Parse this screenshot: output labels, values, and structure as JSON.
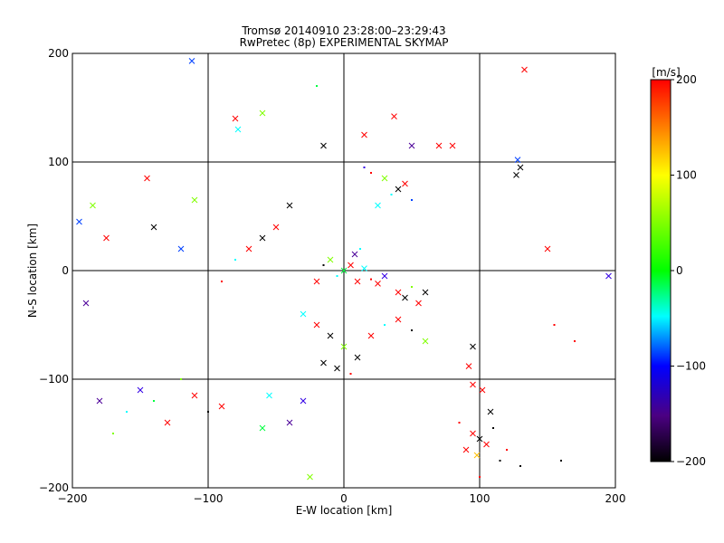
{
  "chart_data": {
    "type": "scatter",
    "title": "Tromsø 20140910 23:28:00–23:29:43",
    "subtitle": "RwPretec (8p) EXPERIMENTAL SKYMAP",
    "xlabel": "E-W location [km]",
    "ylabel": "N-S location [km]",
    "xlim": [
      -200,
      200
    ],
    "ylim": [
      -200,
      200
    ],
    "xticks": [
      -200,
      -100,
      0,
      100,
      200
    ],
    "yticks": [
      -200,
      -100,
      0,
      100,
      200
    ],
    "x_tick_labels": [
      "−200",
      "−100",
      "0",
      "100",
      "200"
    ],
    "y_tick_labels": [
      "−200",
      "−100",
      "0",
      "100",
      "200"
    ],
    "grid": true,
    "marker_types": [
      "cross",
      "dot"
    ],
    "colorbar": {
      "label": "[m/s]",
      "range": [
        -200,
        200
      ],
      "ticks": [
        -200,
        -100,
        0,
        100,
        200
      ],
      "tick_labels": [
        "−200",
        "−100",
        "0",
        "100",
        "200"
      ],
      "colors": [
        "#000000",
        "#6600cc",
        "#0000ff",
        "#00ffff",
        "#00ff00",
        "#ffff00",
        "#ff0000"
      ]
    },
    "points": [
      {
        "x": 0,
        "y": 0,
        "v": 50,
        "m": "x"
      },
      {
        "x": 5,
        "y": 5,
        "v": 200,
        "m": "x"
      },
      {
        "x": -5,
        "y": -5,
        "v": 0,
        "m": "."
      },
      {
        "x": 10,
        "y": -10,
        "v": 200,
        "m": "x"
      },
      {
        "x": 15,
        "y": 2,
        "v": 0,
        "m": "x"
      },
      {
        "x": 20,
        "y": -8,
        "v": 200,
        "m": "."
      },
      {
        "x": 25,
        "y": -12,
        "v": 200,
        "m": "x"
      },
      {
        "x": 30,
        "y": -5,
        "v": -100,
        "m": "x"
      },
      {
        "x": -10,
        "y": 10,
        "v": 100,
        "m": "x"
      },
      {
        "x": -15,
        "y": 5,
        "v": -200,
        "m": "."
      },
      {
        "x": -20,
        "y": -10,
        "v": 200,
        "m": "x"
      },
      {
        "x": 8,
        "y": 15,
        "v": -150,
        "m": "x"
      },
      {
        "x": 12,
        "y": 20,
        "v": 0,
        "m": "."
      },
      {
        "x": 40,
        "y": -20,
        "v": 200,
        "m": "x"
      },
      {
        "x": 45,
        "y": -25,
        "v": -200,
        "m": "x"
      },
      {
        "x": 50,
        "y": -15,
        "v": 100,
        "m": "."
      },
      {
        "x": 55,
        "y": -30,
        "v": 200,
        "m": "x"
      },
      {
        "x": 60,
        "y": -20,
        "v": -200,
        "m": "x"
      },
      {
        "x": 35,
        "y": 70,
        "v": 0,
        "m": "."
      },
      {
        "x": 40,
        "y": 75,
        "v": -200,
        "m": "x"
      },
      {
        "x": 45,
        "y": 80,
        "v": 200,
        "m": "x"
      },
      {
        "x": 50,
        "y": 65,
        "v": -50,
        "m": "."
      },
      {
        "x": 30,
        "y": 85,
        "v": 100,
        "m": "x"
      },
      {
        "x": 20,
        "y": 90,
        "v": 200,
        "m": "."
      },
      {
        "x": 15,
        "y": 95,
        "v": -100,
        "m": "."
      },
      {
        "x": 25,
        "y": 60,
        "v": 0,
        "m": "x"
      },
      {
        "x": -40,
        "y": 60,
        "v": -200,
        "m": "x"
      },
      {
        "x": -50,
        "y": 40,
        "v": 200,
        "m": "x"
      },
      {
        "x": -60,
        "y": 30,
        "v": -200,
        "m": "x"
      },
      {
        "x": -70,
        "y": 20,
        "v": 200,
        "m": "x"
      },
      {
        "x": -80,
        "y": 10,
        "v": 0,
        "m": "."
      },
      {
        "x": -90,
        "y": -10,
        "v": 200,
        "m": "."
      },
      {
        "x": -30,
        "y": -40,
        "v": 0,
        "m": "x"
      },
      {
        "x": -20,
        "y": -50,
        "v": 200,
        "m": "x"
      },
      {
        "x": -10,
        "y": -60,
        "v": -200,
        "m": "x"
      },
      {
        "x": 0,
        "y": -70,
        "v": 100,
        "m": "x"
      },
      {
        "x": 10,
        "y": -80,
        "v": -200,
        "m": "x"
      },
      {
        "x": 20,
        "y": -60,
        "v": 200,
        "m": "x"
      },
      {
        "x": 30,
        "y": -50,
        "v": 0,
        "m": "."
      },
      {
        "x": 40,
        "y": -45,
        "v": 200,
        "m": "x"
      },
      {
        "x": 50,
        "y": -55,
        "v": -200,
        "m": "."
      },
      {
        "x": 60,
        "y": -65,
        "v": 100,
        "m": "x"
      },
      {
        "x": -5,
        "y": -90,
        "v": -200,
        "m": "x"
      },
      {
        "x": 5,
        "y": -95,
        "v": 200,
        "m": "."
      },
      {
        "x": -15,
        "y": -85,
        "v": -200,
        "m": "x"
      },
      {
        "x": 95,
        "y": -150,
        "v": 200,
        "m": "x"
      },
      {
        "x": 100,
        "y": -155,
        "v": -200,
        "m": "x"
      },
      {
        "x": 105,
        "y": -160,
        "v": 200,
        "m": "x"
      },
      {
        "x": 110,
        "y": -145,
        "v": -200,
        "m": "."
      },
      {
        "x": 90,
        "y": -165,
        "v": 200,
        "m": "x"
      },
      {
        "x": 98,
        "y": -170,
        "v": 150,
        "m": "x"
      },
      {
        "x": 115,
        "y": -175,
        "v": -200,
        "m": "."
      },
      {
        "x": 85,
        "y": -140,
        "v": 200,
        "m": "."
      },
      {
        "x": 108,
        "y": -130,
        "v": -200,
        "m": "x"
      },
      {
        "x": 120,
        "y": -165,
        "v": 200,
        "m": "."
      },
      {
        "x": 130,
        "y": -180,
        "v": -200,
        "m": "."
      },
      {
        "x": 100,
        "y": -190,
        "v": 200,
        "m": "."
      },
      {
        "x": -150,
        "y": -110,
        "v": -100,
        "m": "x"
      },
      {
        "x": -140,
        "y": -120,
        "v": 50,
        "m": "."
      },
      {
        "x": -130,
        "y": -140,
        "v": 200,
        "m": "x"
      },
      {
        "x": -120,
        "y": -100,
        "v": 100,
        "m": "."
      },
      {
        "x": -110,
        "y": -115,
        "v": 200,
        "m": "x"
      },
      {
        "x": -160,
        "y": -130,
        "v": 0,
        "m": "."
      },
      {
        "x": -180,
        "y": -120,
        "v": -150,
        "m": "x"
      },
      {
        "x": -170,
        "y": -150,
        "v": 100,
        "m": "."
      },
      {
        "x": -100,
        "y": -130,
        "v": -200,
        "m": "."
      },
      {
        "x": -90,
        "y": -125,
        "v": 200,
        "m": "x"
      },
      {
        "x": -185,
        "y": 60,
        "v": 100,
        "m": "x"
      },
      {
        "x": -175,
        "y": 30,
        "v": 200,
        "m": "x"
      },
      {
        "x": -190,
        "y": -30,
        "v": -150,
        "m": "x"
      },
      {
        "x": -195,
        "y": 45,
        "v": -50,
        "m": "x"
      },
      {
        "x": -140,
        "y": 40,
        "v": -200,
        "m": "x"
      },
      {
        "x": -145,
        "y": 85,
        "v": 200,
        "m": "x"
      },
      {
        "x": -120,
        "y": 20,
        "v": -50,
        "m": "x"
      },
      {
        "x": -110,
        "y": 65,
        "v": 100,
        "m": "x"
      },
      {
        "x": -112,
        "y": 193,
        "v": -50,
        "m": "x"
      },
      {
        "x": -80,
        "y": 140,
        "v": 200,
        "m": "x"
      },
      {
        "x": -78,
        "y": 130,
        "v": 0,
        "m": "x"
      },
      {
        "x": -60,
        "y": 145,
        "v": 100,
        "m": "x"
      },
      {
        "x": -20,
        "y": 170,
        "v": 50,
        "m": "."
      },
      {
        "x": 15,
        "y": 125,
        "v": 200,
        "m": "x"
      },
      {
        "x": 37,
        "y": 142,
        "v": 200,
        "m": "x"
      },
      {
        "x": 50,
        "y": 115,
        "v": -150,
        "m": "x"
      },
      {
        "x": 70,
        "y": 115,
        "v": 200,
        "m": "x"
      },
      {
        "x": 80,
        "y": 115,
        "v": 200,
        "m": "x"
      },
      {
        "x": -15,
        "y": 115,
        "v": -200,
        "m": "x"
      },
      {
        "x": 130,
        "y": 95,
        "v": -200,
        "m": "x"
      },
      {
        "x": 127,
        "y": 88,
        "v": -200,
        "m": "x"
      },
      {
        "x": 128,
        "y": 102,
        "v": -50,
        "m": "x"
      },
      {
        "x": 133,
        "y": 185,
        "v": 200,
        "m": "x"
      },
      {
        "x": 150,
        "y": 20,
        "v": 200,
        "m": "x"
      },
      {
        "x": 195,
        "y": -5,
        "v": -100,
        "m": "x"
      },
      {
        "x": 155,
        "y": -50,
        "v": 200,
        "m": "."
      },
      {
        "x": 170,
        "y": -65,
        "v": 200,
        "m": "."
      },
      {
        "x": 160,
        "y": -175,
        "v": -200,
        "m": "."
      },
      {
        "x": 95,
        "y": -105,
        "v": 200,
        "m": "x"
      },
      {
        "x": 102,
        "y": -110,
        "v": 200,
        "m": "x"
      },
      {
        "x": 95,
        "y": -70,
        "v": -200,
        "m": "x"
      },
      {
        "x": 92,
        "y": -88,
        "v": 200,
        "m": "x"
      },
      {
        "x": -30,
        "y": -120,
        "v": -100,
        "m": "x"
      },
      {
        "x": -40,
        "y": -140,
        "v": -150,
        "m": "x"
      },
      {
        "x": -60,
        "y": -145,
        "v": 50,
        "m": "x"
      },
      {
        "x": -25,
        "y": -190,
        "v": 100,
        "m": "x"
      },
      {
        "x": -55,
        "y": -115,
        "v": 0,
        "m": "x"
      }
    ]
  }
}
